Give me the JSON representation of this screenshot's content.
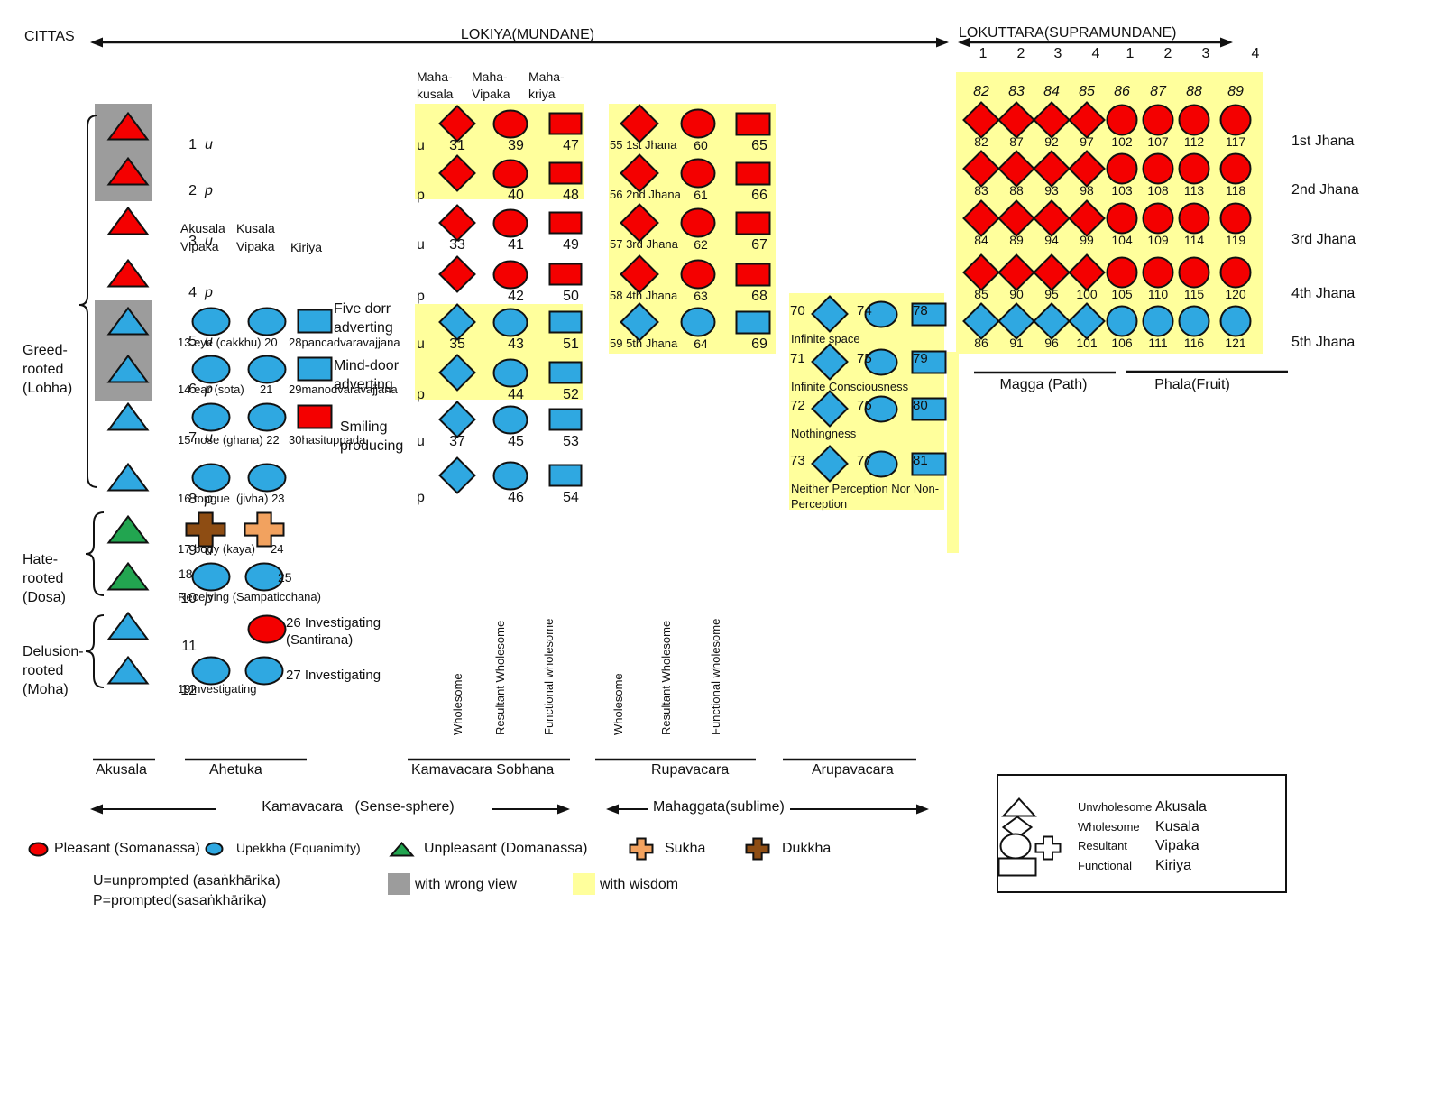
{
  "colors": {
    "red": "#F40000",
    "blue": "#2FA8E1",
    "green": "#22A550",
    "yellow": "#FFFF9C",
    "grey": "#9C9C9C",
    "orange": "#F2A25F",
    "brown": "#8E4D13",
    "white": "#FFFFFF"
  },
  "header": {
    "cittas": "CITTAS",
    "lokiya": "LOKIYA(MUNDANE)",
    "lokuttara": "LOKUTTARA(SUPRAMUNDANE)",
    "lokuttara_cols": [
      "1",
      "2",
      "3",
      "4",
      "1",
      "2",
      "3",
      "4"
    ]
  },
  "left": {
    "rows": [
      {
        "num": "1",
        "mode": "u",
        "color": "red",
        "wrong_view": true
      },
      {
        "num": "2",
        "mode": "p",
        "color": "red",
        "wrong_view": true
      },
      {
        "num": "3",
        "mode": "u",
        "color": "red",
        "wrong_view": false
      },
      {
        "num": "4",
        "mode": "p",
        "color": "red",
        "wrong_view": false
      },
      {
        "num": "5",
        "mode": "u",
        "color": "blue",
        "wrong_view": true
      },
      {
        "num": "6",
        "mode": "p",
        "color": "blue",
        "wrong_view": true
      },
      {
        "num": "7",
        "mode": "u",
        "color": "blue",
        "wrong_view": false
      },
      {
        "num": "8",
        "mode": "p",
        "color": "blue",
        "wrong_view": false
      },
      {
        "num": "9",
        "mode": "u",
        "color": "green",
        "wrong_view": false
      },
      {
        "num": "10",
        "mode": "p",
        "color": "green",
        "wrong_view": false
      },
      {
        "num": "11",
        "mode": "",
        "color": "blue",
        "wrong_view": false
      },
      {
        "num": "12",
        "mode": "",
        "color": "blue",
        "wrong_view": false
      }
    ],
    "groups": [
      {
        "id": "greed",
        "lines": "Greed-\nrooted\n(Lobha)"
      },
      {
        "id": "hate",
        "lines": "Hate-\nrooted\n(Dosa)"
      },
      {
        "id": "delusion",
        "lines": "Delusion-\nrooted\n(Moha)"
      }
    ]
  },
  "ahetuka": {
    "headers": [
      "Akusala\nVipaka",
      "Kusala\nVipaka",
      "Kiriya"
    ],
    "rows": [
      {
        "id": "eye",
        "shapes": [
          "blue-ellipse",
          "blue-ellipse",
          "blue-rect"
        ],
        "caption": "13 eye (cakkhu) 20",
        "extra": "28pancadvaravajjana",
        "side": "Five dorr\nadverting"
      },
      {
        "id": "ear",
        "shapes": [
          "blue-ellipse",
          "blue-ellipse",
          "blue-rect"
        ],
        "caption": "14 ear (sota)",
        "num2": "21",
        "extra": "29manodvaravajjana",
        "side": "Mind-door\nadverting"
      },
      {
        "id": "nose",
        "shapes": [
          "blue-ellipse",
          "blue-ellipse",
          "red-rect"
        ],
        "caption": "15 nose (ghana) 22",
        "extra": "30hasituppada",
        "side": "Smiling\nproducing"
      },
      {
        "id": "tongue",
        "shapes": [
          "blue-ellipse",
          "blue-ellipse"
        ],
        "caption": "16 tongue  (jivha) 23"
      },
      {
        "id": "body",
        "shapes": [
          "brown-cross",
          "orange-cross"
        ],
        "caption": "17 body (kaya)",
        "num2": "24"
      },
      {
        "id": "receiving",
        "shapes": [
          "blue-ellipse",
          "blue-ellipse"
        ],
        "pre": "18",
        "post": "25",
        "caption": "Receiving (Sampaticchana)"
      },
      {
        "id": "investigating-santirana",
        "shapes": [
          null,
          "red-ellipse"
        ],
        "side2": "26 Investigating\n(Santirana)"
      },
      {
        "id": "investigating",
        "shapes": [
          "blue-ellipse",
          "blue-ellipse"
        ],
        "caption": "19Investigating",
        "side2": "27 Investigating"
      }
    ]
  },
  "sobhana": {
    "headers": [
      "Maha-\nkusala",
      "Maha-\nVipaka",
      "Maha-\nkriya"
    ],
    "rows": [
      {
        "mode": "u",
        "nums": [
          "31",
          "39",
          "47"
        ],
        "color": "red",
        "wisdom": true
      },
      {
        "mode": "p",
        "nums": [
          "",
          "40",
          "48"
        ],
        "color": "red",
        "wisdom": true
      },
      {
        "mode": "u",
        "nums": [
          "33",
          "41",
          "49"
        ],
        "color": "red",
        "wisdom": false
      },
      {
        "mode": "p",
        "nums": [
          "",
          "42",
          "50"
        ],
        "color": "red",
        "wisdom": false
      },
      {
        "mode": "u",
        "nums": [
          "35",
          "43",
          "51"
        ],
        "color": "blue",
        "wisdom": true
      },
      {
        "mode": "p",
        "nums": [
          "",
          "44",
          "52"
        ],
        "color": "blue",
        "wisdom": true
      },
      {
        "mode": "u",
        "nums": [
          "37",
          "45",
          "53"
        ],
        "color": "blue",
        "wisdom": false
      },
      {
        "mode": "p",
        "nums": [
          "",
          "46",
          "54"
        ],
        "color": "blue",
        "wisdom": false
      }
    ]
  },
  "rupavacara": {
    "rows": [
      {
        "label": "55 1st Jhana",
        "c": "60",
        "r": "65",
        "color": "red"
      },
      {
        "label": "56 2nd Jhana",
        "c": "61",
        "r": "66",
        "color": "red"
      },
      {
        "label": "57 3rd Jhana",
        "c": "62",
        "r": "67",
        "color": "red"
      },
      {
        "label": "58 4th Jhana",
        "c": "63",
        "r": "68",
        "color": "red"
      },
      {
        "label": "59 5th Jhana",
        "c": "64",
        "r": "69",
        "color": "blue"
      }
    ]
  },
  "arupavacara": {
    "rows": [
      {
        "d": "70",
        "c": "74",
        "r": "78",
        "label": "Infinite space"
      },
      {
        "d": "71",
        "c": "75",
        "r": "79",
        "label": "Infinite Consciousness"
      },
      {
        "d": "72",
        "c": "76",
        "r": "80",
        "label": "Nothingness"
      },
      {
        "d": "73",
        "c": "77",
        "r": "81",
        "label": "Neither Perception Nor Non-\nPerception"
      }
    ]
  },
  "lokuttara": {
    "top_numbers": [
      "82",
      "83",
      "84",
      "85",
      "86",
      "87",
      "88",
      "89"
    ],
    "rows": [
      {
        "label": "1st Jhana",
        "color": "red",
        "nums": [
          "82",
          "87",
          "92",
          "97",
          "102",
          "107",
          "112",
          "117"
        ]
      },
      {
        "label": "2nd Jhana",
        "color": "red",
        "nums": [
          "83",
          "88",
          "93",
          "98",
          "103",
          "108",
          "113",
          "118"
        ]
      },
      {
        "label": "3rd Jhana",
        "color": "red",
        "nums": [
          "84",
          "89",
          "94",
          "99",
          "104",
          "109",
          "114",
          "119"
        ]
      },
      {
        "label": "4th Jhana",
        "color": "red",
        "nums": [
          "85",
          "90",
          "95",
          "100",
          "105",
          "110",
          "115",
          "120"
        ]
      },
      {
        "label": "5th Jhana",
        "color": "blue",
        "nums": [
          "86",
          "91",
          "96",
          "101",
          "106",
          "111",
          "116",
          "121"
        ]
      }
    ],
    "magga": "Magga (Path)",
    "phala": "Phala(Fruit)"
  },
  "rotated_headers": [
    "Wholesome",
    "Resultant Wholesome",
    "Functional wholesome"
  ],
  "sections": [
    "Akusala",
    "Ahetuka",
    "Kamavacara Sobhana",
    "Rupavacara",
    "Arupavacara"
  ],
  "axes": {
    "kamavacara": "Kamavacara   (Sense-sphere)",
    "mahaggata": "Mahaggata(sublime)"
  },
  "legend": {
    "feelings": [
      {
        "shape": "ellipse",
        "color": "red",
        "label": "Pleasant (Somanassa)"
      },
      {
        "shape": "ellipse",
        "color": "blue",
        "label": "Upekkha (Equanimity)"
      },
      {
        "shape": "triangle",
        "color": "green",
        "label": "Unpleasant (Domanassa)"
      },
      {
        "shape": "cross",
        "color": "orange",
        "label": "Sukha"
      },
      {
        "shape": "cross",
        "color": "brown",
        "label": "Dukkha"
      }
    ],
    "notes": [
      "U=unprompted (asaṅkhārika)",
      "P=prompted(sasaṅkhārika)"
    ],
    "swatches": [
      {
        "color": "grey",
        "label": "with wrong view"
      },
      {
        "color": "yellow",
        "label": "with wisdom"
      }
    ],
    "key_box": {
      "rows": [
        {
          "shape": "triangle",
          "en": "Unwholesome",
          "pali": "Akusala"
        },
        {
          "shape": "diamond",
          "en": "Wholesome",
          "pali": "Kusala"
        },
        {
          "shape": "ellipse-cross",
          "en": "Resultant",
          "pali": "Vipaka"
        },
        {
          "shape": "rect",
          "en": "Functional",
          "pali": "Kiriya"
        }
      ]
    }
  }
}
